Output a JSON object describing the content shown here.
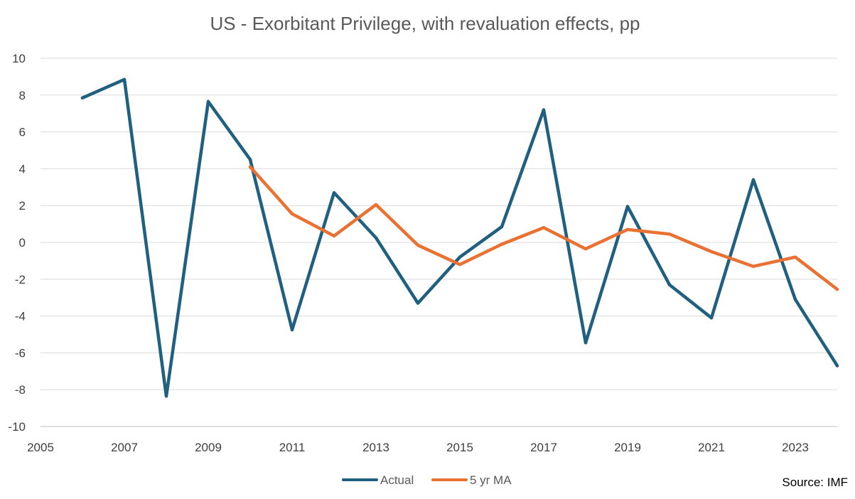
{
  "chart_data": {
    "type": "line",
    "title": "US - Exorbitant Privilege, with revaluation effects, pp",
    "xlabel": "",
    "ylabel": "",
    "xlim": [
      2005,
      2024
    ],
    "ylim": [
      -10,
      10
    ],
    "x_ticks": [
      "2005",
      "2007",
      "2009",
      "2011",
      "2013",
      "2015",
      "2017",
      "2019",
      "2021",
      "2023"
    ],
    "y_ticks": [
      "10",
      "8",
      "6",
      "4",
      "2",
      "0",
      "-2",
      "-4",
      "-6",
      "-8",
      "-10"
    ],
    "grid": true,
    "legend_position": "bottom",
    "series": [
      {
        "name": "Actual",
        "color": "#1f5f7f",
        "x": [
          2006,
          2007,
          2008,
          2009,
          2010,
          2011,
          2012,
          2013,
          2014,
          2015,
          2016,
          2017,
          2018,
          2019,
          2020,
          2021,
          2022,
          2023,
          2024
        ],
        "values": [
          7.85,
          8.85,
          -8.35,
          7.65,
          4.5,
          -4.75,
          2.7,
          0.25,
          -3.3,
          -0.8,
          0.85,
          7.2,
          -5.45,
          1.95,
          -2.3,
          -4.1,
          3.4,
          -3.1,
          -6.7
        ]
      },
      {
        "name": "5 yr MA",
        "color": "#e97132",
        "x": [
          2010,
          2011,
          2012,
          2013,
          2014,
          2015,
          2016,
          2017,
          2018,
          2019,
          2020,
          2021,
          2022,
          2023,
          2024
        ],
        "values": [
          4.1,
          1.55,
          0.35,
          2.05,
          -0.15,
          -1.2,
          -0.1,
          0.8,
          -0.35,
          0.7,
          0.45,
          -0.5,
          -1.3,
          -0.8,
          -2.55
        ]
      }
    ],
    "source_note": "Source: IMF"
  }
}
